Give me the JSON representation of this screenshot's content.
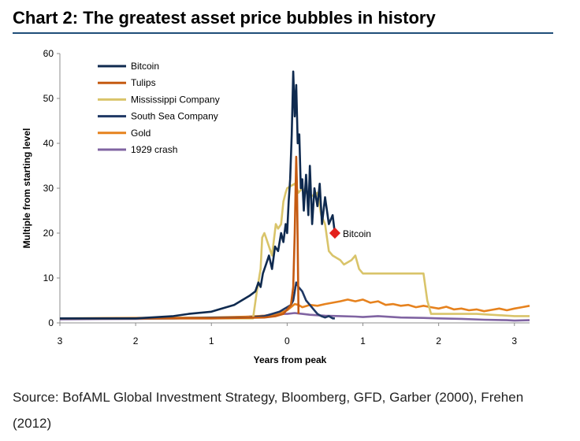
{
  "chart_data": {
    "type": "line",
    "title": "Chart 2: The greatest asset price bubbles in history",
    "xlabel": "Years from peak",
    "ylabel": "Multiple from starting level",
    "xlim": [
      -3.0,
      3.2
    ],
    "ylim": [
      0,
      60
    ],
    "y_ticks": [
      0,
      10,
      20,
      30,
      40,
      50,
      60
    ],
    "x_ticks": [
      {
        "value": -3,
        "label": "3"
      },
      {
        "value": -2,
        "label": "2"
      },
      {
        "value": -1,
        "label": "1"
      },
      {
        "value": 0,
        "label": "0"
      },
      {
        "value": 1,
        "label": "1"
      },
      {
        "value": 2,
        "label": "2"
      },
      {
        "value": 3,
        "label": "3"
      }
    ],
    "grid": false,
    "legend_position": "top-left",
    "series": [
      {
        "name": "Bitcoin",
        "color": "#0f2a4f",
        "x": [
          -3.0,
          -2.0,
          -1.5,
          -1.3,
          -1.0,
          -0.9,
          -0.7,
          -0.6,
          -0.5,
          -0.42,
          -0.38,
          -0.35,
          -0.32,
          -0.28,
          -0.24,
          -0.2,
          -0.16,
          -0.12,
          -0.08,
          -0.05,
          -0.02,
          0.0,
          0.02,
          0.04,
          0.06,
          0.08,
          0.1,
          0.12,
          0.14,
          0.16,
          0.18,
          0.2,
          0.22,
          0.25,
          0.28,
          0.3,
          0.33,
          0.36,
          0.4,
          0.43,
          0.46,
          0.5,
          0.55,
          0.6,
          0.63
        ],
        "y": [
          1,
          1,
          1.5,
          2,
          2.5,
          3,
          4,
          5,
          6,
          7,
          9,
          8,
          11,
          13,
          15,
          12,
          17,
          16,
          20,
          18,
          22,
          20,
          27,
          32,
          42,
          56,
          46,
          53,
          40,
          42,
          30,
          32,
          25,
          33,
          24,
          35,
          22,
          30,
          26,
          31,
          22,
          28,
          22,
          24,
          20
        ]
      },
      {
        "name": "Tulips",
        "color": "#c55a11",
        "x": [
          -3.0,
          -1.0,
          -0.3,
          -0.15,
          -0.05,
          0.0,
          0.05,
          0.08,
          0.1,
          0.12,
          0.13,
          0.15
        ],
        "y": [
          1,
          1,
          1.2,
          1.5,
          2,
          3,
          4,
          8,
          20,
          37,
          30,
          2
        ]
      },
      {
        "name": "Mississippi Company",
        "color": "#d9c46a",
        "x": [
          -3.0,
          -0.45,
          -0.4,
          -0.35,
          -0.33,
          -0.3,
          -0.28,
          -0.2,
          -0.15,
          -0.12,
          -0.08,
          -0.05,
          -0.02,
          0.0,
          0.1,
          0.15,
          0.2,
          0.3,
          0.4,
          0.45,
          0.5,
          0.55,
          0.6,
          0.7,
          0.75,
          0.85,
          0.9,
          0.95,
          1.0,
          1.2,
          1.5,
          1.7,
          1.8,
          1.85,
          1.9,
          2.0,
          2.5,
          3.0,
          3.2
        ],
        "y": [
          1,
          1,
          7,
          12,
          19,
          20,
          19,
          15,
          22,
          21,
          22,
          27,
          29,
          30,
          31,
          29,
          30,
          28,
          29,
          24,
          22,
          16,
          15,
          14,
          13,
          14,
          15,
          12,
          11,
          11,
          11,
          11,
          11,
          5,
          2,
          2,
          2,
          1.5,
          1.5
        ]
      },
      {
        "name": "South Sea Company",
        "color": "#1f3864",
        "x": [
          -3.0,
          -1.5,
          -1.0,
          -0.5,
          -0.3,
          -0.2,
          -0.1,
          -0.05,
          0.0,
          0.05,
          0.08,
          0.1,
          0.12,
          0.15,
          0.2,
          0.25,
          0.3,
          0.35,
          0.4,
          0.45,
          0.5,
          0.55,
          0.6,
          0.63
        ],
        "y": [
          1,
          1,
          1.1,
          1.2,
          1.5,
          2,
          2.5,
          3,
          3.5,
          4,
          5,
          7,
          9,
          8,
          7,
          5,
          4,
          3,
          2,
          1.5,
          1.2,
          1.5,
          1,
          1
        ]
      },
      {
        "name": "Gold",
        "color": "#e6821e",
        "x": [
          -3.0,
          -2.0,
          -1.0,
          -0.5,
          -0.3,
          -0.2,
          -0.1,
          0.0,
          0.05,
          0.1,
          0.15,
          0.2,
          0.3,
          0.4,
          0.5,
          0.6,
          0.7,
          0.8,
          0.9,
          1.0,
          1.1,
          1.2,
          1.3,
          1.4,
          1.5,
          1.6,
          1.7,
          1.8,
          1.9,
          2.0,
          2.1,
          2.2,
          2.3,
          2.4,
          2.5,
          2.6,
          2.7,
          2.8,
          2.9,
          3.0,
          3.1,
          3.2
        ],
        "y": [
          1,
          1.1,
          1.2,
          1.4,
          1.6,
          1.8,
          2.2,
          2.8,
          3.5,
          4.2,
          4.0,
          3.5,
          4.0,
          3.8,
          4.2,
          4.5,
          4.8,
          5.2,
          4.8,
          5.2,
          4.5,
          4.8,
          4.0,
          4.2,
          3.8,
          4.0,
          3.5,
          3.8,
          3.5,
          3.2,
          3.6,
          3.0,
          3.2,
          2.8,
          3.0,
          2.6,
          2.9,
          3.2,
          2.8,
          3.2,
          3.5,
          3.8
        ]
      },
      {
        "name": "1929 crash",
        "color": "#8064a2",
        "x": [
          -3.0,
          -2.0,
          -1.5,
          -1.0,
          -0.6,
          -0.3,
          -0.1,
          0.0,
          0.1,
          0.2,
          0.3,
          0.5,
          0.7,
          0.9,
          1.0,
          1.2,
          1.5,
          1.8,
          2.0,
          2.3,
          2.6,
          2.9,
          3.0,
          3.2
        ],
        "y": [
          0.8,
          0.9,
          1.0,
          1.1,
          1.3,
          1.6,
          2.0,
          2.0,
          2.2,
          2.0,
          1.8,
          1.6,
          1.5,
          1.4,
          1.3,
          1.5,
          1.2,
          1.1,
          1.0,
          0.9,
          0.7,
          0.6,
          0.5,
          0.6
        ]
      }
    ],
    "annotations": [
      {
        "text": "Bitcoin",
        "x": 0.63,
        "y": 20,
        "marker_color": "#e3201b"
      }
    ]
  },
  "source_text": "Source: BofAML Global Investment Strategy, Bloomberg, GFD, Garber (2000), Frehen (2012)",
  "colors": {
    "title_rule": "#1f4e79",
    "axis": "#8c8c8c"
  }
}
